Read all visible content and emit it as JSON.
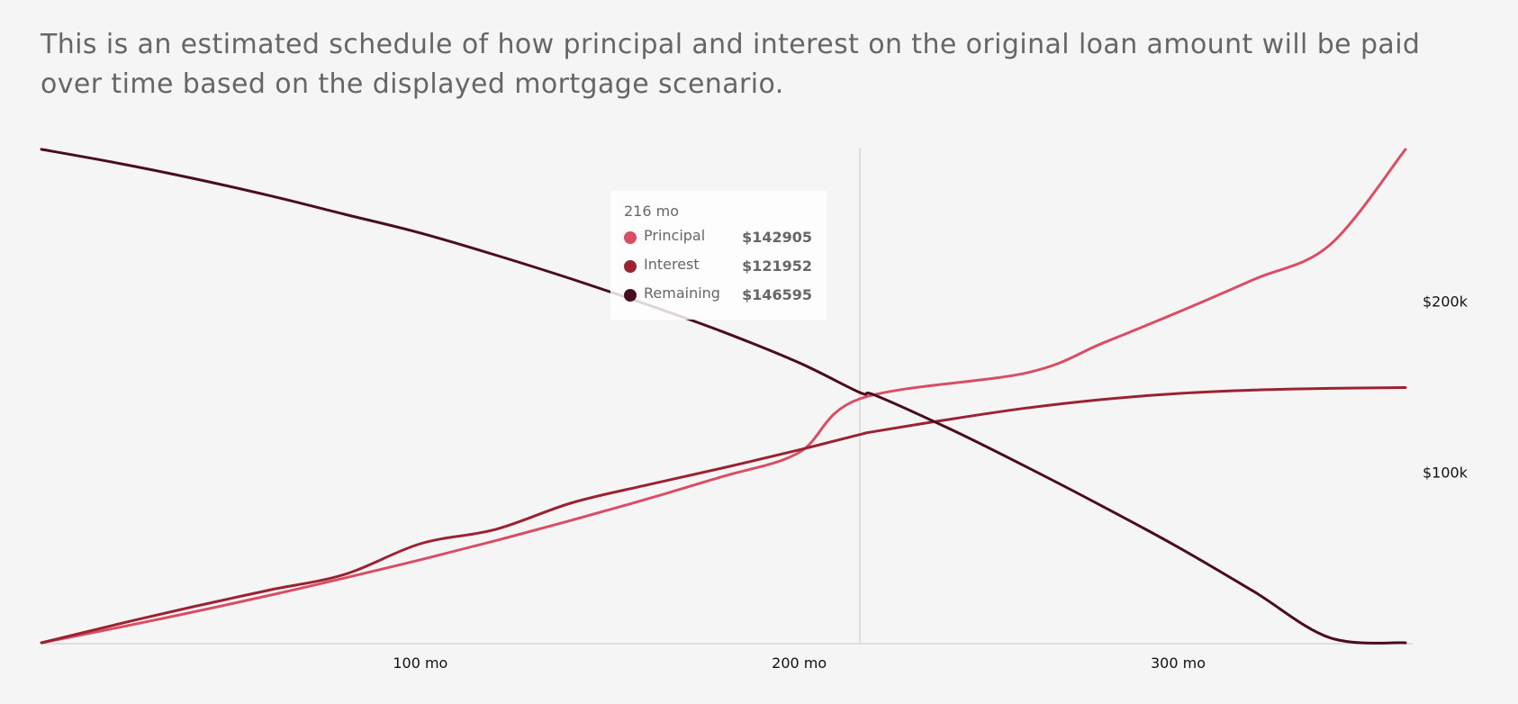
{
  "description": "This is an estimated schedule of how principal and interest on the original loan amount will be paid over time based on the displayed mortgage scenario.",
  "colors": {
    "background": "#f5f5f5",
    "principal": "#d94d65",
    "interest": "#9b2231",
    "remaining": "#4a0d1e",
    "axis": "#d6d6d6"
  },
  "tooltip": {
    "title": "216 mo",
    "rows": [
      {
        "name": "Principal",
        "value": "$142905",
        "color": "#d94d65"
      },
      {
        "name": "Interest",
        "value": "$121952",
        "color": "#9b2231"
      },
      {
        "name": "Remaining",
        "value": "$146595",
        "color": "#4a0d1e"
      }
    ]
  },
  "chart_data": {
    "type": "line",
    "title": "",
    "xlabel": "",
    "ylabel": "",
    "xlim": [
      0,
      360
    ],
    "ylim": [
      0,
      290000
    ],
    "x_ticks": [
      {
        "value": 100,
        "label": "100 mo"
      },
      {
        "value": 200,
        "label": "200 mo"
      },
      {
        "value": 300,
        "label": "300 mo"
      }
    ],
    "y_ticks": [
      {
        "value": 100000,
        "label": "$100k"
      },
      {
        "value": 200000,
        "label": "$200k"
      }
    ],
    "y_axis_position": "right",
    "grid": false,
    "hover": {
      "x": 216
    },
    "x": [
      0,
      20,
      40,
      60,
      80,
      100,
      120,
      140,
      160,
      180,
      200,
      216,
      220,
      240,
      260,
      280,
      300,
      320,
      340,
      360
    ],
    "series": [
      {
        "name": "Principal",
        "color": "#d94d65",
        "values": [
          0,
          8800,
          18000,
          27700,
          37900,
          48600,
          59900,
          71800,
          84300,
          97500,
          111500,
          142905,
          126200,
          141800,
          158100,
          175400,
          193600,
          212800,
          232900,
          289000
        ]
      },
      {
        "name": "Interest",
        "color": "#9b2231",
        "values": [
          0,
          10800,
          21100,
          30800,
          40000,
          58000,
          66500,
          82000,
          92500,
          102500,
          113000,
          121952,
          123800,
          131000,
          137500,
          142500,
          146000,
          148000,
          149000,
          149500
        ]
      },
      {
        "name": "Remaining",
        "color": "#4a0d1e",
        "values": [
          289000,
          281000,
          272000,
          262000,
          251000,
          240000,
          227000,
          213000,
          198000,
          182000,
          164000,
          146595,
          145000,
          125000,
          103000,
          80000,
          56000,
          30000,
          3000,
          0
        ]
      }
    ]
  }
}
